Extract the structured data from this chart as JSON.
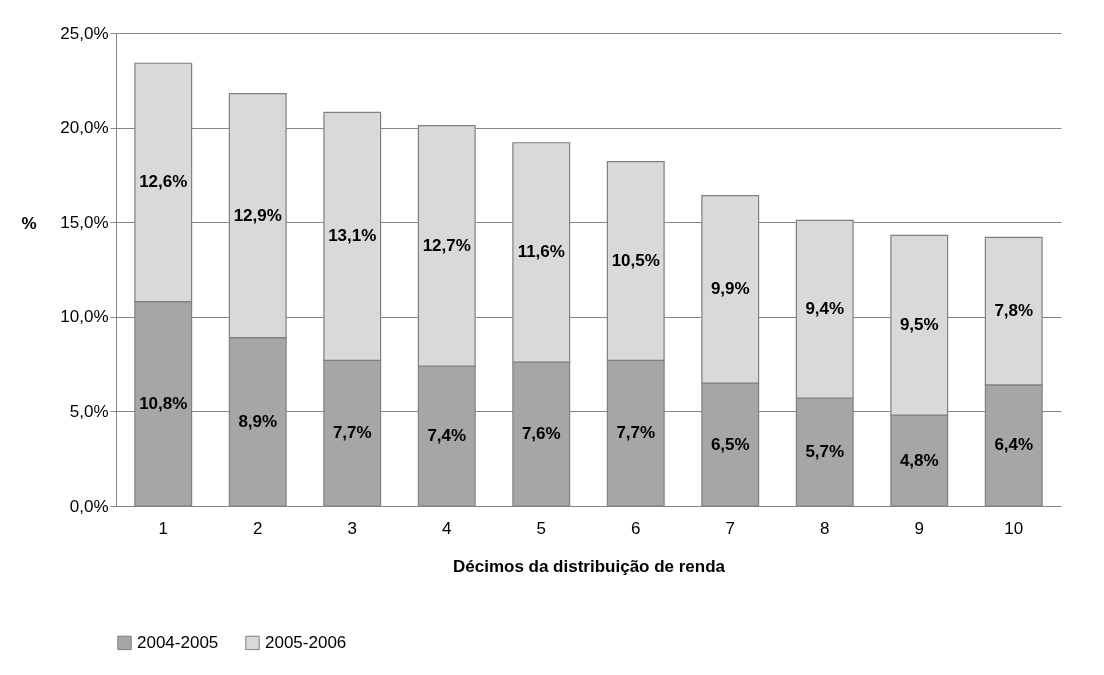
{
  "chart_data": {
    "type": "bar",
    "stacked": true,
    "xlabel": "Décimos da distribuição de renda",
    "ylabel": "%",
    "categories": [
      "1",
      "2",
      "3",
      "4",
      "5",
      "6",
      "7",
      "8",
      "9",
      "10"
    ],
    "series": [
      {
        "name": "2004-2005",
        "color": "#a6a6a6",
        "values": [
          10.8,
          8.9,
          7.7,
          7.4,
          7.6,
          7.7,
          6.5,
          5.7,
          4.8,
          6.4
        ],
        "value_labels": [
          "10,8%",
          "8,9%",
          "7,7%",
          "7,4%",
          "7,6%",
          "7,7%",
          "6,5%",
          "5,7%",
          "4,8%",
          "6,4%"
        ]
      },
      {
        "name": "2005-2006",
        "color": "#d9d9d9",
        "values": [
          12.6,
          12.9,
          13.1,
          12.7,
          11.6,
          10.5,
          9.9,
          9.4,
          9.5,
          7.8
        ],
        "value_labels": [
          "12,6%",
          "12,9%",
          "13,1%",
          "12,7%",
          "11,6%",
          "10,5%",
          "9,9%",
          "9,4%",
          "9,5%",
          "7,8%"
        ]
      }
    ],
    "ylim": [
      0,
      25
    ],
    "yticks": [
      {
        "value": 0,
        "label": "0,0%"
      },
      {
        "value": 5,
        "label": "5,0%"
      },
      {
        "value": 10,
        "label": "10,0%"
      },
      {
        "value": 15,
        "label": "15,0%"
      },
      {
        "value": 20,
        "label": "20,0%"
      },
      {
        "value": 25,
        "label": "25,0%"
      }
    ],
    "grid": "y",
    "legend": "bottom"
  }
}
